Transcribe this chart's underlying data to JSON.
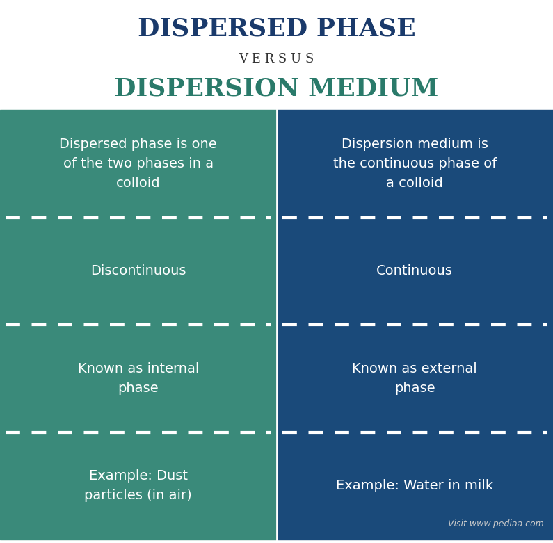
{
  "title1": "DISPERSED PHASE",
  "versus": "V E R S U S",
  "title2": "DISPERSION MEDIUM",
  "title1_color": "#1a3a6b",
  "versus_color": "#333333",
  "title2_color": "#2a7a6a",
  "left_bg": "#3a8a7a",
  "right_bg": "#1a4a7a",
  "left_cells": [
    "Dispersed phase is one\nof the two phases in a\ncolloid",
    "Discontinuous",
    "Known as internal\nphase",
    "Example: Dust\nparticles (in air)"
  ],
  "right_cells": [
    "Dispersion medium is\nthe continuous phase of\na colloid",
    "Continuous",
    "Known as external\nphase",
    "Example: Water in milk"
  ],
  "text_color": "#ffffff",
  "website": "Visit www.pediaa.com",
  "bg_color": "#ffffff"
}
